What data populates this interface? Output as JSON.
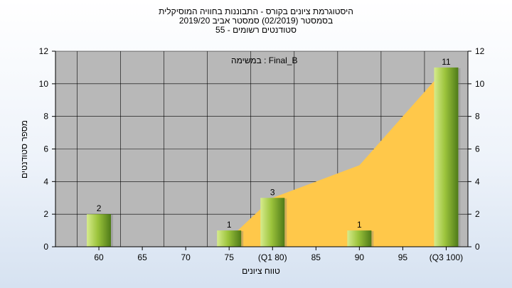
{
  "header": {
    "line1": "היסטוגרמת ציונים בקורס - התבוננות בחוויה המוסיקלית",
    "line2": "בסמסטר  (02/2019)  סמסטר אביב 2019/20",
    "line3": "סטודנטים רשומים - 55"
  },
  "legend_note": {
    "text": "במשימה : Final_B"
  },
  "chart_data": {
    "type": "bar",
    "xlabel": "טווח ציונים",
    "ylabel": "מספר סטודנטים",
    "ylim": [
      0,
      12
    ],
    "yticks": [
      0,
      2,
      4,
      6,
      8,
      10,
      12
    ],
    "categories": [
      "60",
      "65",
      "70",
      "75",
      "(Q1 80)",
      "85",
      "90",
      "95",
      "(Q3 100)"
    ],
    "series": [
      {
        "values": [
          2,
          0,
          0,
          1,
          3,
          0,
          1,
          0,
          11
        ]
      }
    ],
    "data_labels": [
      "2",
      "",
      "",
      "1",
      "3",
      "",
      "1",
      "",
      "11"
    ],
    "area_overlay": {
      "x": [
        "75",
        "(Q1 80)",
        "85",
        "90",
        "95",
        "(Q3 100)"
      ],
      "y": [
        0.5,
        3,
        4,
        5,
        8,
        11
      ]
    },
    "grid": true,
    "colors": {
      "plot_bg": "#b8b8b8",
      "grid": "#000000",
      "area": "#ffc84a",
      "bar_light": "#d6eb8c",
      "bar_mid": "#9cc43c",
      "bar_dark": "#4e7a18"
    }
  }
}
